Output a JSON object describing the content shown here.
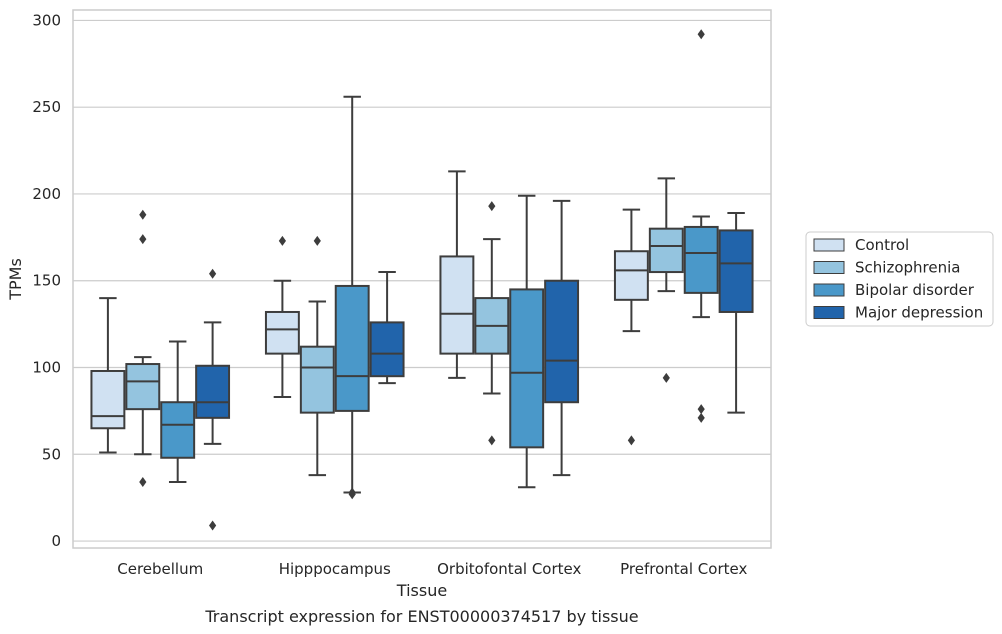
{
  "caption": "Transcript expression for ENST00000374517 by tissue",
  "chart_data": {
    "type": "box",
    "xlabel": "Tissue",
    "ylabel": "TPMs",
    "ylim": [
      -4,
      306
    ],
    "yticks": [
      0,
      50,
      100,
      150,
      200,
      250,
      300
    ],
    "grid": "horizontal",
    "legend_position": "right",
    "categories": [
      "Cerebellum",
      "Hipppocampus",
      "Orbitofontal Cortex",
      "Prefrontal Cortex"
    ],
    "series": [
      {
        "name": "Control",
        "color": "#d0e1f2",
        "boxes": [
          {
            "whisker_low": 51,
            "q1": 65,
            "median": 72,
            "q3": 98,
            "whisker_high": 140,
            "outliers": []
          },
          {
            "whisker_low": 83,
            "q1": 108,
            "median": 122,
            "q3": 132,
            "whisker_high": 150,
            "outliers": [
              173
            ]
          },
          {
            "whisker_low": 94,
            "q1": 108,
            "median": 131,
            "q3": 164,
            "whisker_high": 213,
            "outliers": []
          },
          {
            "whisker_low": 121,
            "q1": 139,
            "median": 156,
            "q3": 167,
            "whisker_high": 191,
            "outliers": [
              58
            ]
          }
        ]
      },
      {
        "name": "Schizophrenia",
        "color": "#94c4df",
        "boxes": [
          {
            "whisker_low": 50,
            "q1": 76,
            "median": 92,
            "q3": 102,
            "whisker_high": 106,
            "outliers": [
              188,
              174,
              34
            ]
          },
          {
            "whisker_low": 38,
            "q1": 74,
            "median": 100,
            "q3": 112,
            "whisker_high": 138,
            "outliers": [
              173
            ]
          },
          {
            "whisker_low": 85,
            "q1": 108,
            "median": 124,
            "q3": 140,
            "whisker_high": 174,
            "outliers": [
              193,
              58
            ]
          },
          {
            "whisker_low": 144,
            "q1": 155,
            "median": 170,
            "q3": 180,
            "whisker_high": 209,
            "outliers": [
              94
            ]
          }
        ]
      },
      {
        "name": "Bipolar disorder",
        "color": "#4a98c9",
        "boxes": [
          {
            "whisker_low": 34,
            "q1": 48,
            "median": 67,
            "q3": 80,
            "whisker_high": 115,
            "outliers": []
          },
          {
            "whisker_low": 28,
            "q1": 75,
            "median": 95,
            "q3": 147,
            "whisker_high": 256,
            "outliers": [
              27,
              28
            ]
          },
          {
            "whisker_low": 31,
            "q1": 54,
            "median": 97,
            "q3": 145,
            "whisker_high": 199,
            "outliers": []
          },
          {
            "whisker_low": 129,
            "q1": 143,
            "median": 166,
            "q3": 181,
            "whisker_high": 187,
            "outliers": [
              292,
              76,
              71
            ]
          }
        ]
      },
      {
        "name": "Major depression",
        "color": "#2164ab",
        "boxes": [
          {
            "whisker_low": 56,
            "q1": 71,
            "median": 80,
            "q3": 101,
            "whisker_high": 126,
            "outliers": [
              154,
              9
            ]
          },
          {
            "whisker_low": 91,
            "q1": 95,
            "median": 108,
            "q3": 126,
            "whisker_high": 155,
            "outliers": []
          },
          {
            "whisker_low": 38,
            "q1": 80,
            "median": 104,
            "q3": 150,
            "whisker_high": 196,
            "outliers": []
          },
          {
            "whisker_low": 74,
            "q1": 132,
            "median": 160,
            "q3": 179,
            "whisker_high": 189,
            "outliers": []
          }
        ]
      }
    ]
  }
}
